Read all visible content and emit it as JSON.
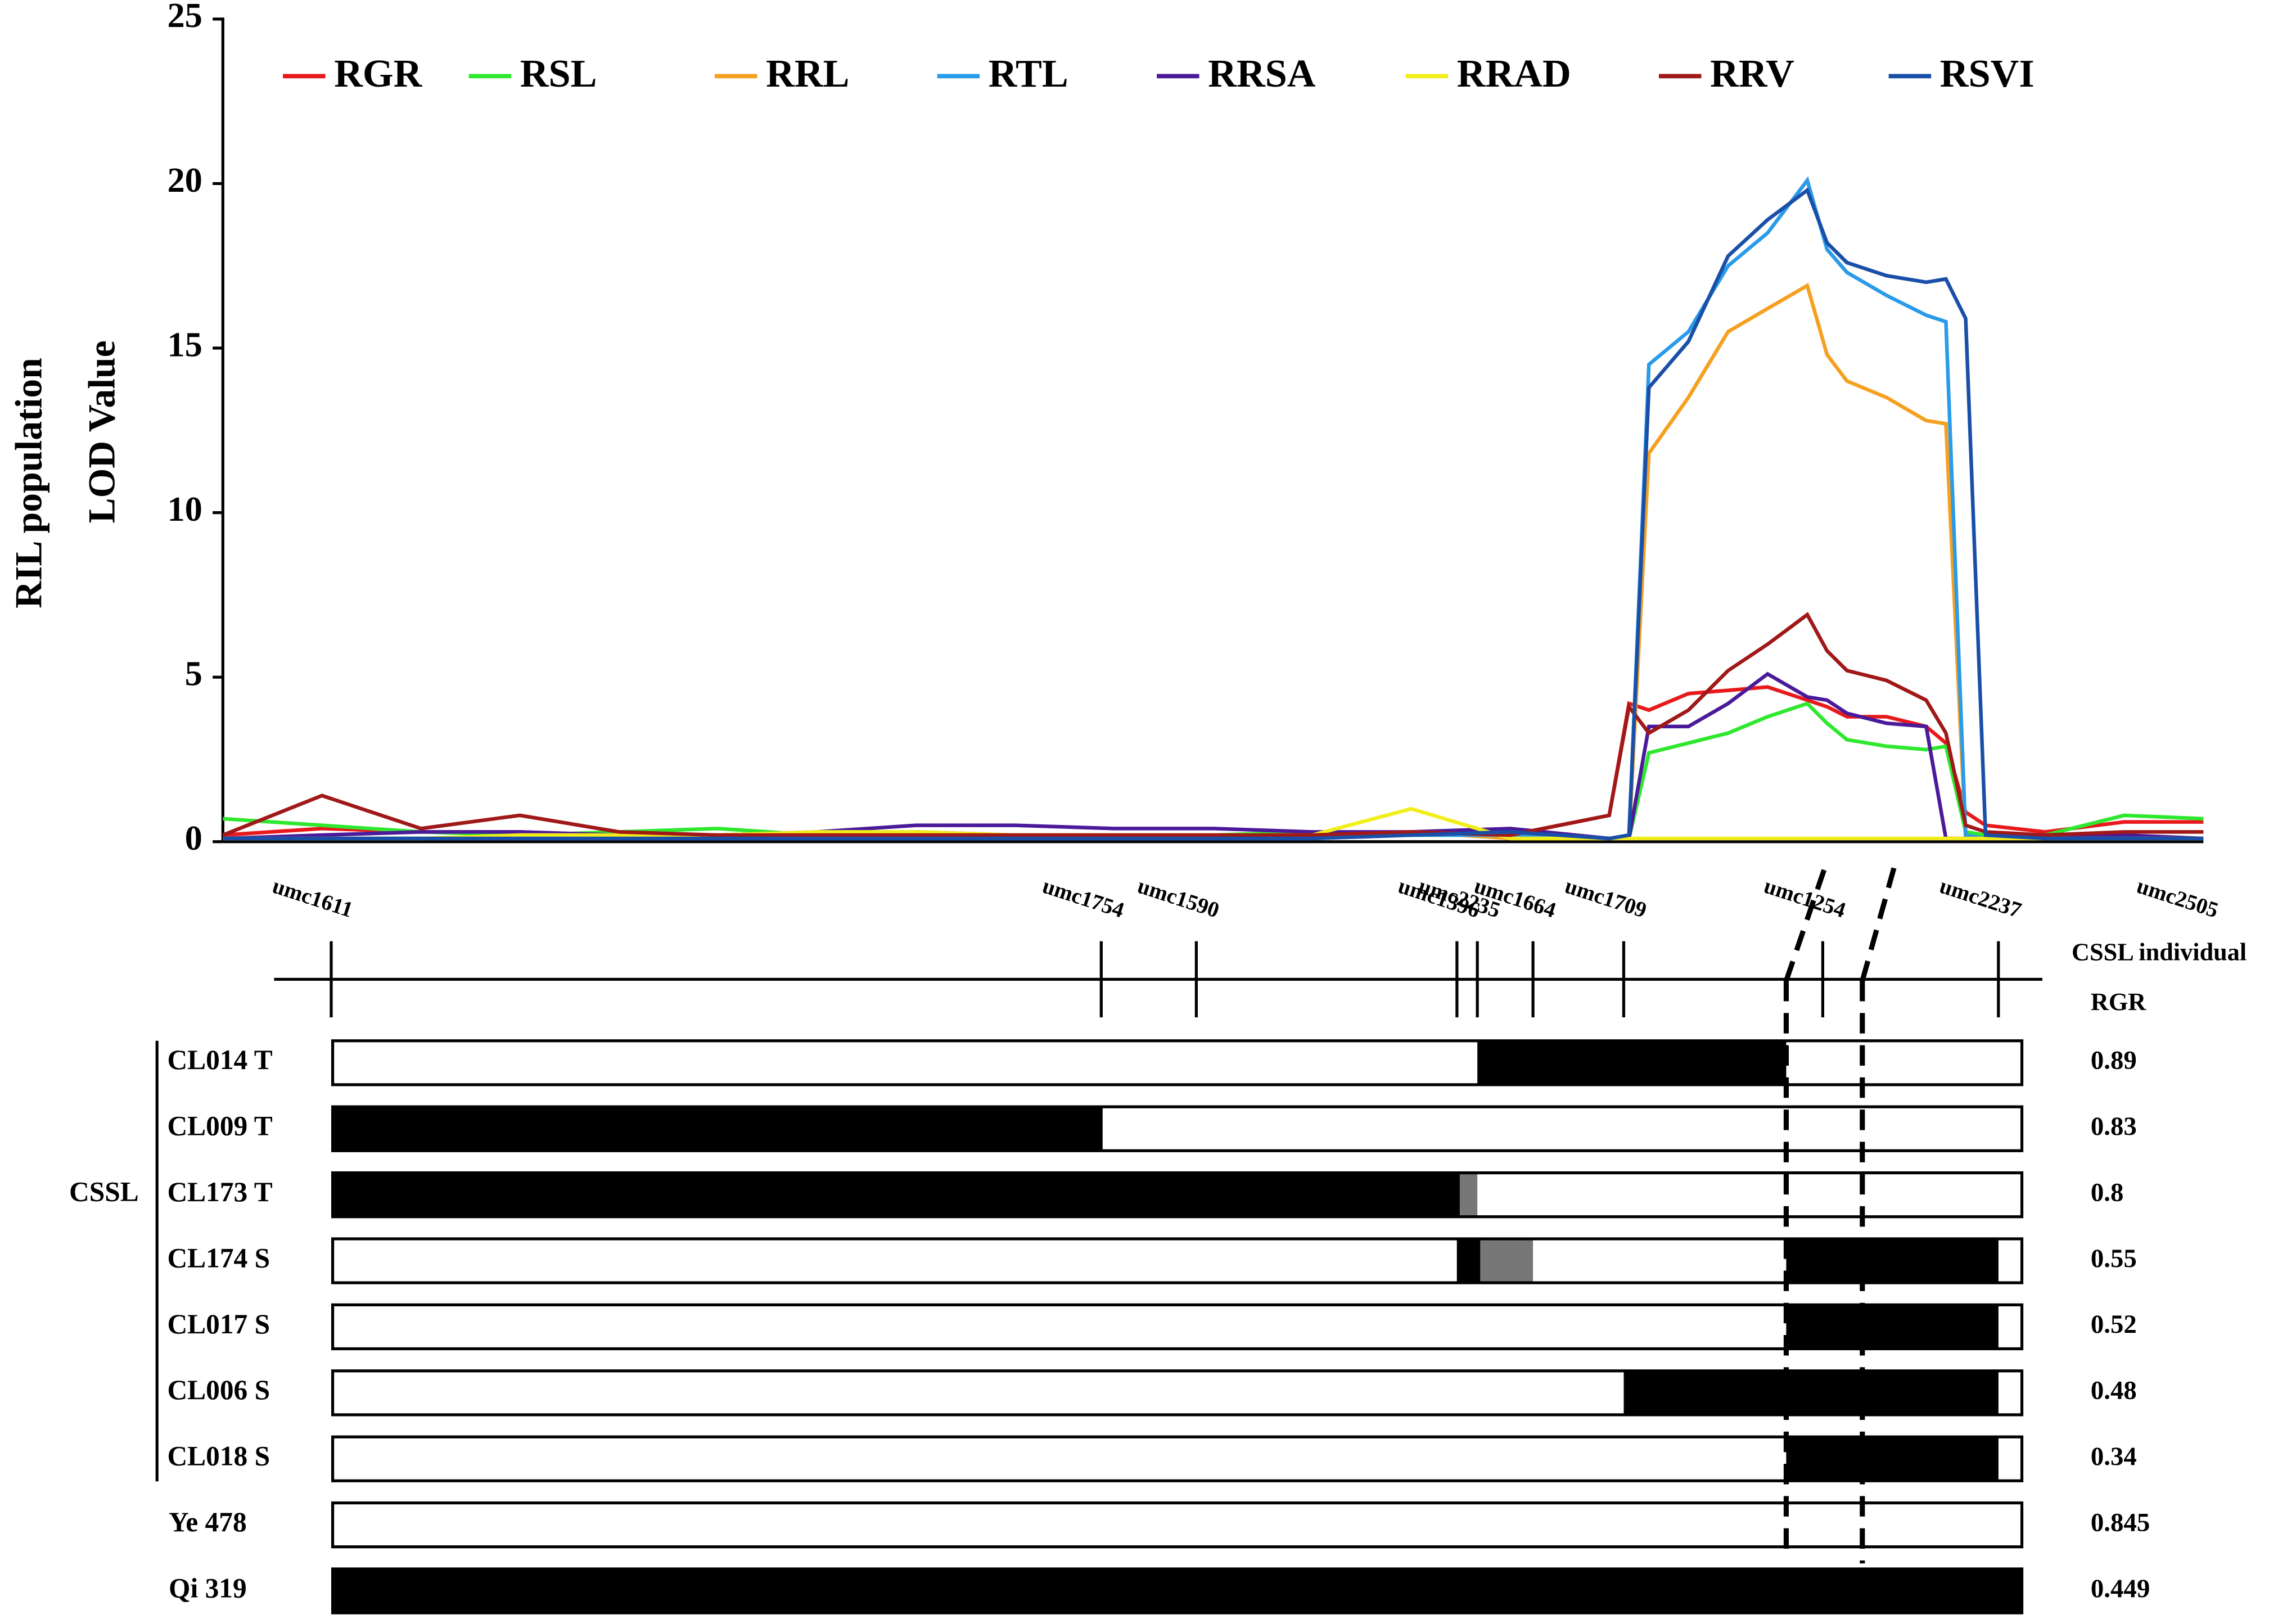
{
  "chart_data": {
    "type": "line",
    "y_label": [
      "RIL  population",
      "LOD Value"
    ],
    "x": [
      0,
      5,
      10,
      15,
      20,
      25,
      30,
      35,
      40,
      45,
      50,
      55,
      60,
      65,
      70,
      71,
      72,
      74,
      76,
      78,
      80,
      81,
      82,
      84,
      86,
      87,
      88,
      89,
      92,
      96,
      100
    ],
    "xlim": [
      0,
      100
    ],
    "ylim": [
      0,
      25
    ],
    "yticks": [
      0,
      5,
      10,
      15,
      20,
      25
    ],
    "legend": "top",
    "series": [
      {
        "name": "RGR",
        "color": "#e8191c",
        "values": [
          0.2,
          0.4,
          0.3,
          0.3,
          0.2,
          0.2,
          0.2,
          0.3,
          0.2,
          0.2,
          0.2,
          0.2,
          0.3,
          0.2,
          0.8,
          4.2,
          4.0,
          4.5,
          4.6,
          4.7,
          4.3,
          4.1,
          3.8,
          3.8,
          3.5,
          3.0,
          0.9,
          0.5,
          0.3,
          0.6,
          0.6
        ]
      },
      {
        "name": "RSL",
        "color": "#2ee82e",
        "values": [
          0.7,
          0.5,
          0.3,
          0.2,
          0.3,
          0.4,
          0.2,
          0.2,
          0.2,
          0.2,
          0.2,
          0.3,
          0.2,
          0.2,
          0.1,
          0.1,
          2.7,
          3.0,
          3.3,
          3.8,
          4.2,
          3.6,
          3.1,
          2.9,
          2.8,
          2.9,
          0.3,
          0.2,
          0.2,
          0.8,
          0.7
        ]
      },
      {
        "name": "RRL",
        "color": "#f5a020",
        "values": [
          0.1,
          0.1,
          0.1,
          0.1,
          0.2,
          0.2,
          0.3,
          0.2,
          0.2,
          0.2,
          0.2,
          0.2,
          0.3,
          0.1,
          0.1,
          0.1,
          11.8,
          13.5,
          15.5,
          16.2,
          16.9,
          14.8,
          14.0,
          13.5,
          12.8,
          12.7,
          0.1,
          0.1,
          0.1,
          0.1,
          0.1
        ]
      },
      {
        "name": "RTL",
        "color": "#2a9be8",
        "values": [
          0.1,
          0.1,
          0.1,
          0.1,
          0.1,
          0.1,
          0.1,
          0.1,
          0.1,
          0.1,
          0.1,
          0.1,
          0.2,
          0.2,
          0.1,
          0.2,
          14.5,
          15.5,
          17.5,
          18.5,
          20.1,
          18.0,
          17.3,
          16.6,
          16.0,
          15.8,
          0.2,
          0.1,
          0.1,
          0.1,
          0.1
        ]
      },
      {
        "name": "RRSA",
        "color": "#4b1a9a",
        "values": [
          0.1,
          0.2,
          0.3,
          0.3,
          0.2,
          0.2,
          0.3,
          0.5,
          0.5,
          0.4,
          0.4,
          0.3,
          0.3,
          0.4,
          0.1,
          0.1,
          3.5,
          3.5,
          4.2,
          5.1,
          4.4,
          4.3,
          3.9,
          3.6,
          3.5,
          0.1,
          0.1,
          0.1,
          0.1,
          0.2,
          0.1
        ]
      },
      {
        "name": "RRAD",
        "color": "#f2ee1a",
        "values": [
          0.1,
          0.1,
          0.1,
          0.2,
          0.2,
          0.2,
          0.3,
          0.3,
          0.2,
          0.2,
          0.2,
          0.2,
          1.0,
          0.1,
          0.1,
          0.1,
          0.1,
          0.1,
          0.1,
          0.1,
          0.1,
          0.1,
          0.1,
          0.1,
          0.1,
          0.1,
          0.1,
          0.1,
          0.1,
          0.1,
          0.1
        ]
      },
      {
        "name": "RRV",
        "color": "#a01818",
        "values": [
          0.2,
          1.4,
          0.4,
          0.8,
          0.3,
          0.2,
          0.2,
          0.2,
          0.2,
          0.2,
          0.2,
          0.2,
          0.3,
          0.2,
          0.8,
          4.1,
          3.3,
          4.0,
          5.2,
          6.0,
          6.9,
          5.8,
          5.2,
          4.9,
          4.3,
          3.3,
          0.5,
          0.3,
          0.2,
          0.3,
          0.3
        ]
      },
      {
        "name": "RSVI",
        "color": "#1a4fa8",
        "values": [
          0.1,
          0.1,
          0.1,
          0.1,
          0.1,
          0.1,
          0.1,
          0.1,
          0.1,
          0.1,
          0.1,
          0.1,
          0.2,
          0.3,
          0.1,
          0.2,
          13.8,
          15.2,
          17.8,
          18.9,
          19.8,
          18.2,
          17.6,
          17.2,
          17.0,
          17.1,
          15.9,
          0.2,
          0.1,
          0.1,
          0.1
        ]
      }
    ],
    "markers": [
      {
        "name": "umc1611",
        "pos": 5.47
      },
      {
        "name": "umc1754",
        "pos": 44.35
      },
      {
        "name": "umc1590",
        "pos": 49.15
      },
      {
        "name": "umc1396",
        "pos": 62.31
      },
      {
        "name": "umc2235",
        "pos": 63.34
      },
      {
        "name": "umc1664",
        "pos": 66.15
      },
      {
        "name": "umc1709",
        "pos": 70.73
      },
      {
        "name": "umc1254",
        "pos": 80.78
      },
      {
        "name": "umc2237",
        "pos": 89.65
      },
      {
        "name": "umc2505",
        "pos": 99.6
      }
    ]
  },
  "genotypes": {
    "group_label": "CSSL",
    "header": [
      "CSSL individual",
      "RGR"
    ],
    "rows": [
      {
        "name": "CL014 T",
        "rgr": 0.89
      },
      {
        "name": "CL009 T",
        "rgr": 0.83
      },
      {
        "name": "CL173 T",
        "rgr": 0.8
      },
      {
        "name": "CL174 S",
        "rgr": 0.55
      },
      {
        "name": "CL017 S",
        "rgr": 0.52
      },
      {
        "name": "CL006 S",
        "rgr": 0.48
      },
      {
        "name": "CL018 S",
        "rgr": 0.34
      },
      {
        "name": "Ye 478",
        "rgr": 0.845
      },
      {
        "name": "Qi 319",
        "rgr": 0.449
      }
    ]
  }
}
